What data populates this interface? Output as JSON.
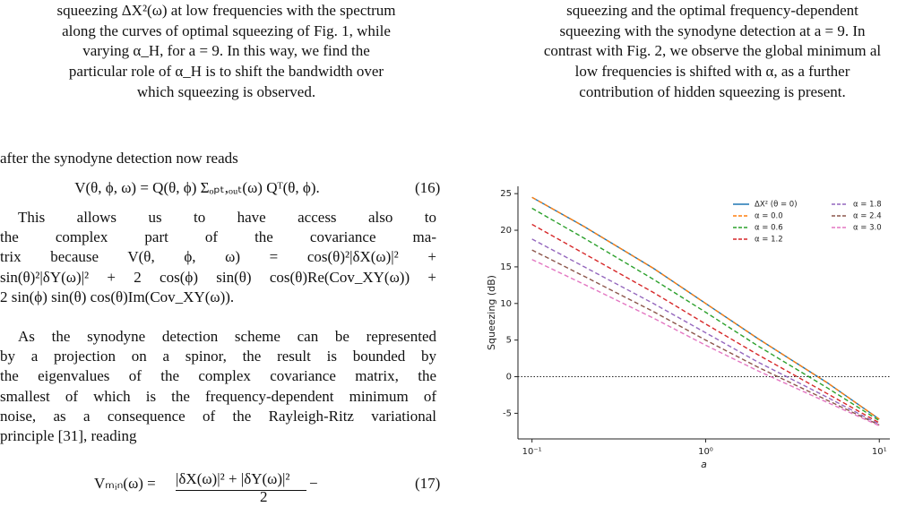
{
  "left_column": {
    "caption_lines": [
      "squeezing ΔX²(ω) at low frequencies with the spectrum",
      "along the curves of optimal squeezing of Fig. 1, while",
      "varying α_H, for a = 9. In this way, we find the",
      "particular role of α_H is to shift the bandwidth over",
      "which squeezing is observed."
    ],
    "intro": "after the synodyne detection now reads",
    "eq16": {
      "body": "V(θ, ϕ, ω) = Q(θ, ϕ) Σₒₚₜ,ₒᵤₜ(ω) Qᵀ(θ, ϕ).",
      "number": "(16)"
    },
    "paragraph1": [
      "This allows us to have access also to",
      "the complex part of the covariance ma-",
      "trix because V(θ, ϕ, ω) = cos(θ)²|δX(ω)|² +",
      "sin(θ)²|δY(ω)|² + 2 cos(ϕ) sin(θ) cos(θ)Re(Cov_XY(ω)) +",
      "2 sin(ϕ) sin(θ) cos(θ)Im(Cov_XY(ω))."
    ],
    "paragraph2": [
      "As the synodyne detection scheme can be represented",
      "by a projection on a spinor, the result is bounded by",
      "the eigenvalues of the complex covariance matrix, the",
      "smallest of which is the frequency-dependent minimum of",
      "noise, as a consequence of the Rayleigh-Ritz variational",
      "principle [31], reading"
    ],
    "eq17": {
      "lhs": "Vₘᵢₙ(ω) =",
      "numerator": "|δX(ω)|² + |δY(ω)|²",
      "denominator": "2",
      "tail": "−",
      "number": "(17)"
    }
  },
  "right_column": {
    "caption_lines": [
      "squeezing and the optimal frequency-dependent",
      "squeezing with the synodyne detection at a = 9. In",
      "contrast with Fig. 2, we observe the global minimum al",
      "low frequencies is shifted with α, as a further",
      "contribution of hidden squeezing is present."
    ]
  },
  "chart_data": {
    "type": "line",
    "x_label": "a",
    "y_label": "Squeezing (dB)",
    "x_scale": "log",
    "x": [
      0.1,
      0.2,
      0.5,
      1,
      2,
      5,
      10
    ],
    "series": [
      {
        "name": "ΔX² (θ = 0)",
        "color": "#1f77b4",
        "dash": false,
        "values": [
          24.5,
          20.5,
          14.8,
          10.0,
          5.2,
          -0.8,
          -5.8
        ]
      },
      {
        "name": "α = 0.0",
        "color": "#ff7f0e",
        "dash": true,
        "values": [
          24.5,
          20.5,
          14.8,
          10.0,
          5.2,
          -0.8,
          -5.8
        ]
      },
      {
        "name": "α = 0.6",
        "color": "#2ca02c",
        "dash": true,
        "values": [
          23.0,
          18.9,
          13.3,
          8.8,
          4.2,
          -1.5,
          -6.0
        ]
      },
      {
        "name": "α = 1.2",
        "color": "#d62728",
        "dash": true,
        "values": [
          20.8,
          16.8,
          11.5,
          7.2,
          3.0,
          -2.3,
          -6.3
        ]
      },
      {
        "name": "α = 1.8",
        "color": "#9467bd",
        "dash": true,
        "values": [
          18.8,
          15.0,
          10.0,
          6.0,
          2.0,
          -2.8,
          -6.5
        ]
      },
      {
        "name": "α = 2.4",
        "color": "#8c564b",
        "dash": true,
        "values": [
          17.3,
          13.7,
          8.9,
          5.0,
          1.3,
          -3.2,
          -6.6
        ]
      },
      {
        "name": "α = 3.0",
        "color": "#e377c2",
        "dash": true,
        "values": [
          16.0,
          12.6,
          8.0,
          4.3,
          0.8,
          -3.5,
          -6.7
        ]
      }
    ],
    "xlim": [
      0.083,
      11.5
    ],
    "ylim": [
      -8.5,
      26
    ],
    "xticks": [
      {
        "value": 0.1,
        "label": "10⁻¹"
      },
      {
        "value": 1,
        "label": "10⁰"
      },
      {
        "value": 10,
        "label": "10¹"
      }
    ],
    "yticks": [
      -5,
      0,
      5,
      10,
      15,
      20,
      25
    ],
    "hline": 0,
    "legend": "upper right",
    "legend_columns": 2
  }
}
